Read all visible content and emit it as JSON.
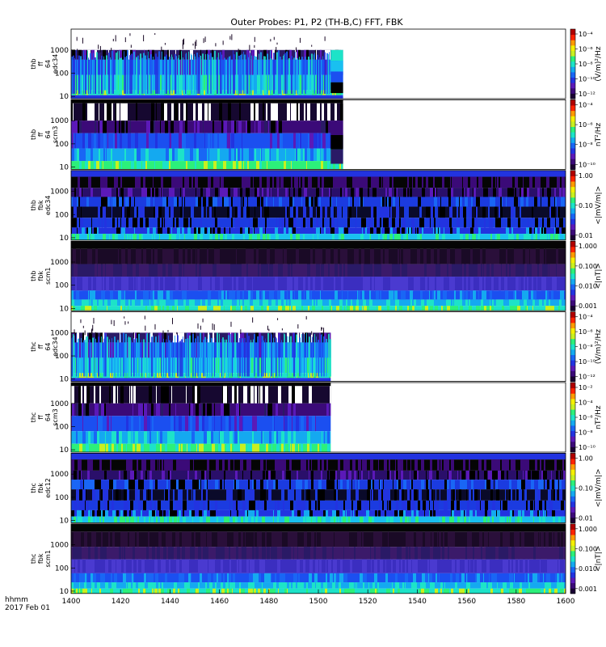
{
  "chart_data": {
    "type": "heatmap",
    "title": "Outer Probes: P1, P2 (TH-B,C) FFT, FBK",
    "x_axis": {
      "range": [
        1400,
        1600
      ],
      "ticks": [
        "1400",
        "1420",
        "1440",
        "1460",
        "1480",
        "1500",
        "1520",
        "1540",
        "1560",
        "1580",
        "1600"
      ],
      "label_line1": "hhmm",
      "label_line2": "2017 Feb 01"
    },
    "panels": [
      {
        "label": [
          "thb",
          "ff",
          "64",
          "edc34"
        ],
        "kind": "ff_edc",
        "data_end": 1510,
        "y_ticks": [
          "1000",
          "100",
          "10"
        ],
        "colorbar_ticks": [
          "10⁻⁴",
          "10⁻⁶",
          "10⁻⁸",
          "10⁻¹⁰",
          "10⁻¹²"
        ],
        "colorbar_unit": "(V/m)²/Hz"
      },
      {
        "label": [
          "thb",
          "ff",
          "64",
          "scm3"
        ],
        "kind": "ff_scm",
        "data_end": 1510,
        "y_ticks": [
          "1000",
          "100",
          "10"
        ],
        "colorbar_ticks": [
          "10⁻⁴",
          "10⁻⁶",
          "10⁻⁸",
          "10⁻¹⁰"
        ],
        "colorbar_unit": "nT²/Hz"
      },
      {
        "label": [
          "thb",
          "fbk",
          "edc34"
        ],
        "kind": "fbk_edc",
        "data_end": 1600,
        "y_ticks": [
          "1000",
          "100",
          "10"
        ],
        "colorbar_ticks": [
          "1.00",
          "0.10",
          "0.01"
        ],
        "colorbar_unit": "<|mV/m|>"
      },
      {
        "label": [
          "thb",
          "fbk",
          "scm1"
        ],
        "kind": "fbk_scm",
        "data_end": 1600,
        "y_ticks": [
          "1000",
          "100",
          "10"
        ],
        "colorbar_ticks": [
          "1.000",
          "0.100",
          "0.010",
          "0.001"
        ],
        "colorbar_unit": "<|nT|>"
      },
      {
        "label": [
          "thc",
          "ff",
          "64",
          "edc34"
        ],
        "kind": "ff_edc",
        "data_end": 1505,
        "y_ticks": [
          "1000",
          "100",
          "10"
        ],
        "colorbar_ticks": [
          "10⁻⁴",
          "10⁻⁶",
          "10⁻⁸",
          "10⁻¹⁰",
          "10⁻¹²"
        ],
        "colorbar_unit": "(V/m)²/Hz"
      },
      {
        "label": [
          "thc",
          "ff",
          "64",
          "scm3"
        ],
        "kind": "ff_scm",
        "data_end": 1505,
        "y_ticks": [
          "1000",
          "100",
          "10"
        ],
        "colorbar_ticks": [
          "10⁻²",
          "10⁻⁴",
          "10⁻⁶",
          "10⁻⁸",
          "10⁻¹⁰"
        ],
        "colorbar_unit": "nT²/Hz"
      },
      {
        "label": [
          "thc",
          "fbk",
          "edc12"
        ],
        "kind": "fbk_edc",
        "data_end": 1600,
        "y_ticks": [
          "1000",
          "100",
          "10"
        ],
        "colorbar_ticks": [
          "1.00",
          "0.10",
          "0.01"
        ],
        "colorbar_unit": "<|mV/m|>"
      },
      {
        "label": [
          "thc",
          "fbk",
          "scm1"
        ],
        "kind": "fbk_scm",
        "data_end": 1600,
        "y_ticks": [
          "1000",
          "100",
          "10"
        ],
        "colorbar_ticks": [
          "1.000",
          "0.100",
          "0.010",
          "0.001"
        ],
        "colorbar_unit": "<|nT|>"
      }
    ]
  }
}
